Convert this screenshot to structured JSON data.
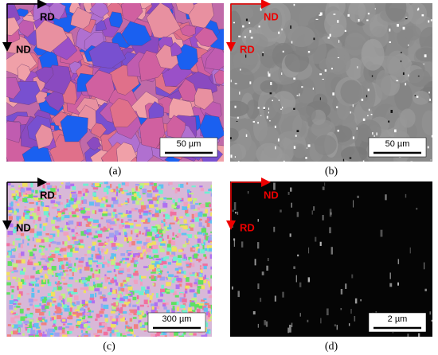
{
  "panels": [
    {
      "caption": "(a)",
      "axis_labels": [
        "RD",
        "ND"
      ],
      "scale_bar": "50 µm"
    },
    {
      "caption": "(b)",
      "axis_labels": [
        "ND",
        "RD"
      ],
      "scale_bar": "50 µm"
    },
    {
      "caption": "(c)",
      "axis_labels": [
        "RD",
        "ND"
      ],
      "scale_bar": "300 µm"
    },
    {
      "caption": "(d)",
      "axis_labels": [
        "ND",
        "RD"
      ],
      "scale_bar": "2 µm"
    }
  ]
}
